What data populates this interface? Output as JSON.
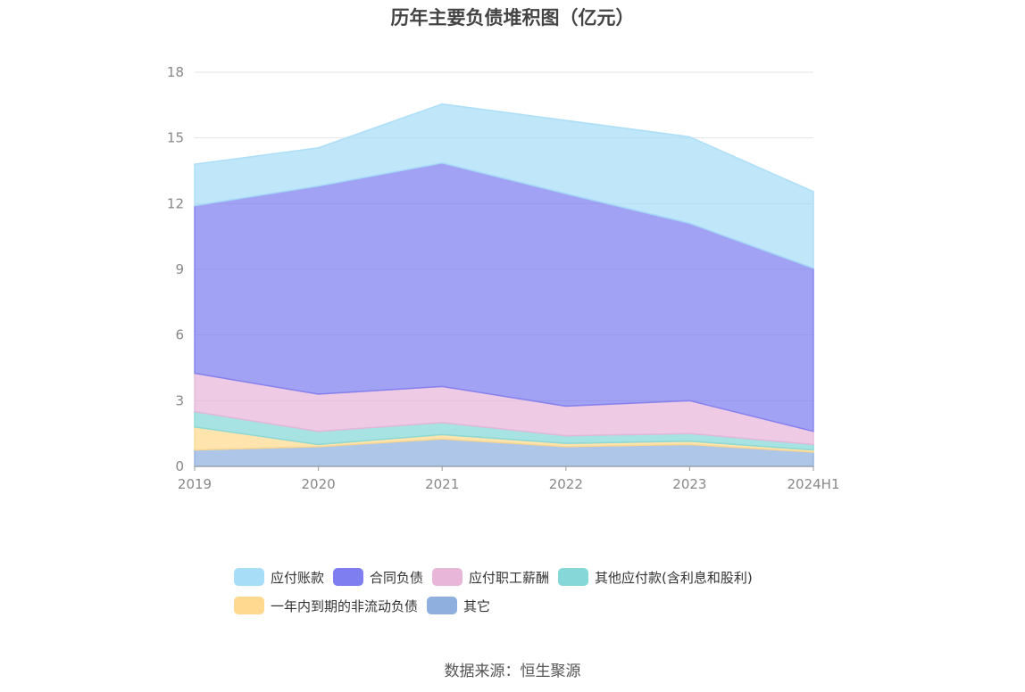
{
  "title": "历年主要负债堆积图（亿元）",
  "source": "数据来源：恒生聚源",
  "chart_data": {
    "type": "area",
    "stacked": true,
    "title": "历年主要负债堆积图（亿元）",
    "x": [
      "2019",
      "2020",
      "2021",
      "2022",
      "2023",
      "2024H1"
    ],
    "ylim": [
      0,
      18
    ],
    "yticks": [
      0,
      3,
      6,
      9,
      12,
      15,
      18
    ],
    "grid": true,
    "legend_position": "bottom",
    "series": [
      {
        "name": "其它",
        "color": "#8fb0de",
        "values": [
          0.75,
          0.9,
          1.25,
          0.9,
          1.0,
          0.65
        ]
      },
      {
        "name": "一年内到期的非流动负债",
        "color": "#ffd98f",
        "values": [
          1.05,
          0.1,
          0.2,
          0.15,
          0.15,
          0.1
        ]
      },
      {
        "name": "其他应付款(含利息和股利)",
        "color": "#86d8d8",
        "values": [
          0.7,
          0.6,
          0.55,
          0.35,
          0.35,
          0.25
        ]
      },
      {
        "name": "应付职工薪酬",
        "color": "#e8b6d9",
        "values": [
          1.75,
          1.7,
          1.65,
          1.35,
          1.5,
          0.6
        ]
      },
      {
        "name": "合同负债",
        "color": "#7e7ef0",
        "values": [
          7.65,
          9.5,
          10.2,
          9.7,
          8.1,
          7.45
        ]
      },
      {
        "name": "应付账款",
        "color": "#a8ddf7",
        "values": [
          1.9,
          1.75,
          2.7,
          3.35,
          3.95,
          3.5
        ]
      }
    ],
    "legend_order": [
      "应付账款",
      "合同负债",
      "应付职工薪酬",
      "其他应付款(含利息和股利)",
      "一年内到期的非流动负债",
      "其它"
    ]
  }
}
